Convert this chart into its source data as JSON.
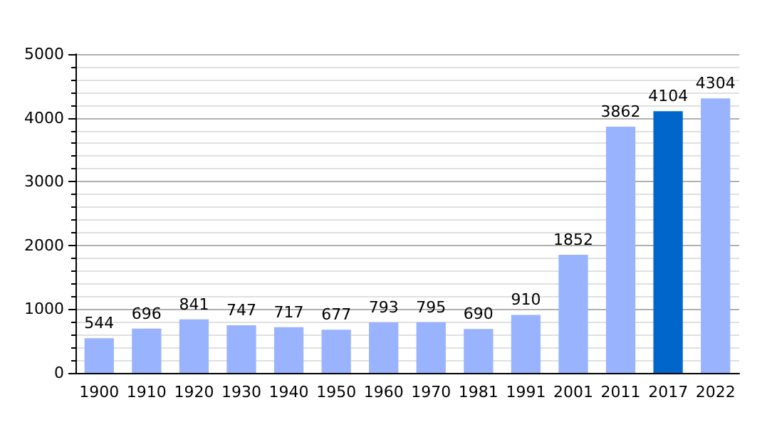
{
  "chart_data": {
    "type": "bar",
    "categories": [
      "1900",
      "1910",
      "1920",
      "1930",
      "1940",
      "1950",
      "1960",
      "1970",
      "1981",
      "1991",
      "2001",
      "2011",
      "2017",
      "2022"
    ],
    "values": [
      544,
      696,
      841,
      747,
      717,
      677,
      793,
      795,
      690,
      910,
      1852,
      3862,
      4104,
      4304
    ],
    "colors": [
      "#99b3ff",
      "#99b3ff",
      "#99b3ff",
      "#99b3ff",
      "#99b3ff",
      "#99b3ff",
      "#99b3ff",
      "#99b3ff",
      "#99b3ff",
      "#99b3ff",
      "#99b3ff",
      "#99b3ff",
      "#0066cc",
      "#99b3ff"
    ],
    "ylim": [
      0,
      5000
    ],
    "yticks": [
      0,
      1000,
      2000,
      3000,
      4000,
      5000
    ],
    "grid": "y",
    "data_labels": true
  }
}
